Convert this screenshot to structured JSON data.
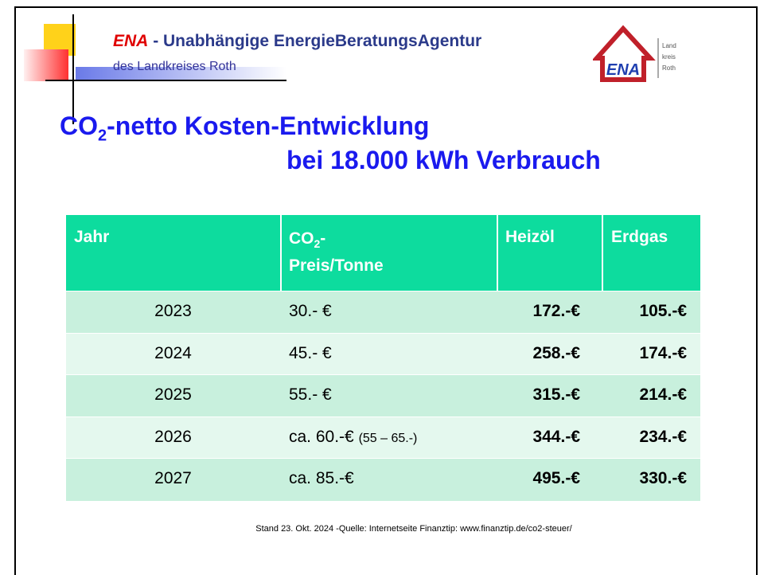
{
  "header": {
    "brand": "ENA",
    "title": "- Unabhängige EnergieBeratungsAgentur",
    "subtitle": "des Landkreises Roth",
    "logo": {
      "brand": "ENA",
      "lines": [
        "Land",
        "kreis",
        "Roth"
      ]
    }
  },
  "heading": {
    "line1": {
      "prefix": "CO",
      "sub": "2",
      "rest": "-netto Kosten-Entwicklung"
    },
    "line2": "bei 18.000 kWh Verbrauch"
  },
  "table": {
    "headers": [
      {
        "text": "Jahr"
      },
      {
        "prefix": "CO",
        "sub": "2",
        "rest": "-",
        "line2": "Preis/Tonne"
      },
      {
        "text": "Heizöl"
      },
      {
        "text": "Erdgas"
      }
    ],
    "rows": [
      [
        "2023",
        {
          "text": "30.- €"
        },
        "172.-€",
        "105.-€"
      ],
      [
        "2024",
        {
          "text": "45.- €"
        },
        "258.-€",
        "174.-€"
      ],
      [
        "2025",
        {
          "text": "55.- €"
        },
        "315.-€",
        "214.-€"
      ],
      [
        "2026",
        {
          "text": "ca. 60.-€",
          "note": "(55 – 65.-)"
        },
        "344.-€",
        "234.-€"
      ],
      [
        "2027",
        {
          "text": "ca. 85.-€"
        },
        "495.-€",
        "330.-€"
      ]
    ]
  },
  "footer": "Stand 23. Okt. 2024 -Quelle: Internetseite Finanztip: www.finanztip.de/co2-steuer/"
}
